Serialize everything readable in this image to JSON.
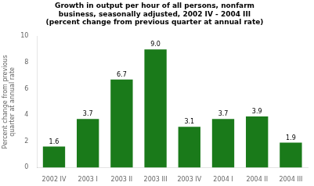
{
  "chart_data": {
    "type": "bar",
    "title": "Growth in output per hour of all persons, nonfarm\nbusiness, seasonally adjusted, 2002 IV - 2004 III\n(percent change from previous quarter at annual rate)",
    "y_label": "Percent change from previous\nquarter at annual rate",
    "categories": [
      "2002 IV",
      "2003 I",
      "2003 II",
      "2003 III",
      "2003 IV",
      "2004 I",
      "2004 II",
      "2004 III"
    ],
    "values": [
      1.6,
      3.7,
      6.7,
      9.0,
      3.1,
      3.7,
      3.9,
      1.9
    ],
    "value_labels": [
      "1.6",
      "3.7",
      "6.7",
      "9.0",
      "3.1",
      "3.7",
      "3.9",
      "1.9"
    ],
    "color": "#1a7a1a",
    "ylim": [
      0,
      10
    ],
    "yticks": [
      0,
      2,
      4,
      6,
      8,
      10
    ],
    "grid": false,
    "data_labels": true
  }
}
